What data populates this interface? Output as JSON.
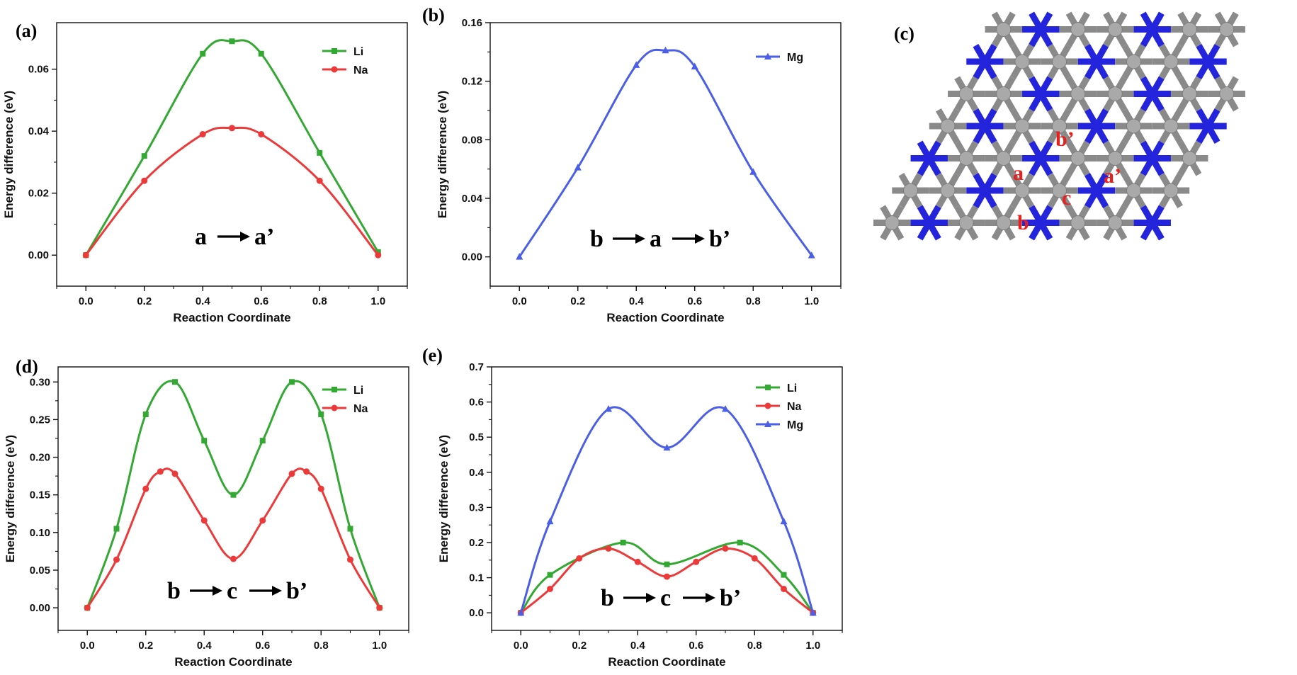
{
  "colors": {
    "Li": "#33a833",
    "Na": "#ec3a3a",
    "Mg": "#4a5ee6",
    "lattice_gray": "#8a8a8a",
    "lattice_atom": "#a9a9a9",
    "lattice_blue": "#2424dd",
    "site_label": "#e8201e"
  },
  "chart_data": [
    {
      "type": "line",
      "panel_label": "(a)",
      "xlabel": "Reaction Coordinate",
      "ylabel": "Energy difference (eV)",
      "xlim": [
        -0.1,
        1.1
      ],
      "ylim": [
        -0.01,
        0.075
      ],
      "xticks": [
        0.0,
        0.2,
        0.4,
        0.6,
        0.8,
        1.0
      ],
      "xtick_labels": [
        "0.0",
        "0.2",
        "0.4",
        "0.6",
        "0.8",
        "1.0"
      ],
      "yticks": [
        0.0,
        0.02,
        0.04,
        0.06
      ],
      "ytick_labels": [
        "0.00",
        "0.02",
        "0.04",
        "0.06"
      ],
      "annotation": "a→a'",
      "annotation_parts": [
        "a",
        "a’"
      ],
      "legend": "top-right",
      "series": [
        {
          "name": "Li",
          "marker": "square",
          "color_key": "Li",
          "x": [
            0.0,
            0.2,
            0.4,
            0.5,
            0.6,
            0.8,
            1.0
          ],
          "y": [
            0.0,
            0.032,
            0.065,
            0.069,
            0.065,
            0.033,
            0.001
          ]
        },
        {
          "name": "Na",
          "marker": "circle",
          "color_key": "Na",
          "x": [
            0.0,
            0.2,
            0.4,
            0.5,
            0.6,
            0.8,
            1.0
          ],
          "y": [
            0.0,
            0.024,
            0.039,
            0.041,
            0.039,
            0.024,
            0.0
          ]
        }
      ]
    },
    {
      "type": "line",
      "panel_label": "(b)",
      "xlabel": "Reaction Coordinate",
      "ylabel": "Energy difference (eV)",
      "xlim": [
        -0.1,
        1.1
      ],
      "ylim": [
        -0.02,
        0.16
      ],
      "xticks": [
        0.0,
        0.2,
        0.4,
        0.6,
        0.8,
        1.0
      ],
      "xtick_labels": [
        "0.0",
        "0.2",
        "0.4",
        "0.6",
        "0.8",
        "1.0"
      ],
      "yticks": [
        0.0,
        0.04,
        0.08,
        0.12,
        0.16
      ],
      "ytick_labels": [
        "0.00",
        "0.04",
        "0.08",
        "0.12",
        "0.16"
      ],
      "annotation": "b→a→b'",
      "annotation_parts": [
        "b",
        "a",
        "b’"
      ],
      "legend": "top-right",
      "series": [
        {
          "name": "Mg",
          "marker": "triangle",
          "color_key": "Mg",
          "x": [
            0.0,
            0.2,
            0.4,
            0.5,
            0.6,
            0.8,
            1.0
          ],
          "y": [
            0.0,
            0.061,
            0.131,
            0.141,
            0.13,
            0.058,
            0.001
          ]
        }
      ]
    },
    {
      "type": "line",
      "panel_label": "(d)",
      "xlabel": "Reaction Coordinate",
      "ylabel": "Energy difference (eV)",
      "xlim": [
        -0.1,
        1.1
      ],
      "ylim": [
        -0.03,
        0.32
      ],
      "xticks": [
        0.0,
        0.2,
        0.4,
        0.6,
        0.8,
        1.0
      ],
      "xtick_labels": [
        "0.0",
        "0.2",
        "0.4",
        "0.6",
        "0.8",
        "1.0"
      ],
      "yticks": [
        0.0,
        0.05,
        0.1,
        0.15,
        0.2,
        0.25,
        0.3
      ],
      "ytick_labels": [
        "0.00",
        "0.05",
        "0.10",
        "0.15",
        "0.20",
        "0.25",
        "0.30"
      ],
      "annotation": "b→c→b'",
      "annotation_parts": [
        "b",
        "c",
        "b’"
      ],
      "legend": "top-right",
      "series": [
        {
          "name": "Li",
          "marker": "square",
          "color_key": "Li",
          "x": [
            0.0,
            0.1,
            0.2,
            0.3,
            0.4,
            0.5,
            0.6,
            0.7,
            0.8,
            0.9,
            1.0
          ],
          "y": [
            0.0,
            0.105,
            0.257,
            0.3,
            0.222,
            0.15,
            0.222,
            0.3,
            0.257,
            0.105,
            0.0
          ]
        },
        {
          "name": "Na",
          "marker": "circle",
          "color_key": "Na",
          "x": [
            0.0,
            0.1,
            0.2,
            0.25,
            0.3,
            0.4,
            0.5,
            0.6,
            0.7,
            0.75,
            0.8,
            0.9,
            1.0
          ],
          "y": [
            0.0,
            0.064,
            0.158,
            0.181,
            0.178,
            0.116,
            0.065,
            0.116,
            0.178,
            0.181,
            0.158,
            0.064,
            0.0
          ]
        }
      ]
    },
    {
      "type": "line",
      "panel_label": "(e)",
      "xlabel": "Reaction Coordinate",
      "ylabel": "Energy difference (eV)",
      "xlim": [
        -0.1,
        1.1
      ],
      "ylim": [
        -0.05,
        0.7
      ],
      "xticks": [
        0.0,
        0.2,
        0.4,
        0.6,
        0.8,
        1.0
      ],
      "xtick_labels": [
        "0.0",
        "0.2",
        "0.4",
        "0.6",
        "0.8",
        "1.0"
      ],
      "yticks": [
        0.0,
        0.1,
        0.2,
        0.3,
        0.4,
        0.5,
        0.6,
        0.7
      ],
      "ytick_labels": [
        "0.0",
        "0.1",
        "0.2",
        "0.3",
        "0.4",
        "0.5",
        "0.6",
        "0.7"
      ],
      "annotation": "b→c→b'",
      "annotation_parts": [
        "b",
        "c",
        "b’"
      ],
      "legend": "top-right",
      "series": [
        {
          "name": "Li",
          "marker": "square",
          "color_key": "Li",
          "x": [
            0.0,
            0.1,
            0.35,
            0.5,
            0.75,
            0.9,
            1.0
          ],
          "y": [
            0.0,
            0.108,
            0.2,
            0.138,
            0.2,
            0.108,
            0.0
          ]
        },
        {
          "name": "Na",
          "marker": "circle",
          "color_key": "Na",
          "x": [
            0.0,
            0.1,
            0.2,
            0.3,
            0.4,
            0.5,
            0.6,
            0.7,
            0.8,
            0.9,
            1.0
          ],
          "y": [
            0.0,
            0.068,
            0.155,
            0.183,
            0.145,
            0.103,
            0.145,
            0.183,
            0.155,
            0.068,
            0.0
          ]
        },
        {
          "name": "Mg",
          "marker": "triangle",
          "color_key": "Mg",
          "x": [
            0.0,
            0.1,
            0.3,
            0.5,
            0.7,
            0.9,
            1.0
          ],
          "y": [
            0.0,
            0.26,
            0.58,
            0.47,
            0.58,
            0.26,
            0.0
          ]
        }
      ]
    }
  ],
  "structure_panel": {
    "panel_label": "(c)",
    "site_labels": [
      "a",
      "b’",
      "a’",
      "c",
      "b"
    ]
  }
}
